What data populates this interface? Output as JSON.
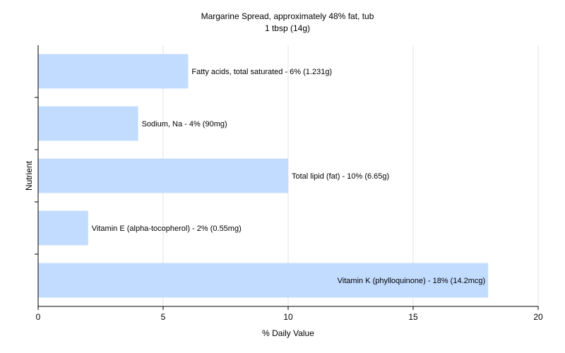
{
  "chart_data": {
    "type": "bar",
    "orientation": "horizontal",
    "title": "Margarine Spread, approximately 48% fat, tub",
    "subtitle": "1 tbsp (14g)",
    "xlabel": "% Daily Value",
    "ylabel": "Nutrient",
    "xlim": [
      0,
      20
    ],
    "xticks": [
      0,
      5,
      10,
      15,
      20
    ],
    "grid": true,
    "bar_color": "#c2dcff",
    "categories": [
      "Fatty acids, total saturated",
      "Sodium, Na",
      "Total lipid (fat)",
      "Vitamin E (alpha-tocopherol)",
      "Vitamin K (phylloquinone)"
    ],
    "values": [
      6,
      4,
      10,
      2,
      18
    ],
    "data_labels": [
      "Fatty acids, total saturated - 6% (1.231g)",
      "Sodium, Na - 4% (90mg)",
      "Total lipid (fat) - 10% (6.65g)",
      "Vitamin E (alpha-tocopherol) - 2% (0.55mg)",
      "Vitamin K (phylloquinone) - 18% (14.2mcg)"
    ]
  }
}
